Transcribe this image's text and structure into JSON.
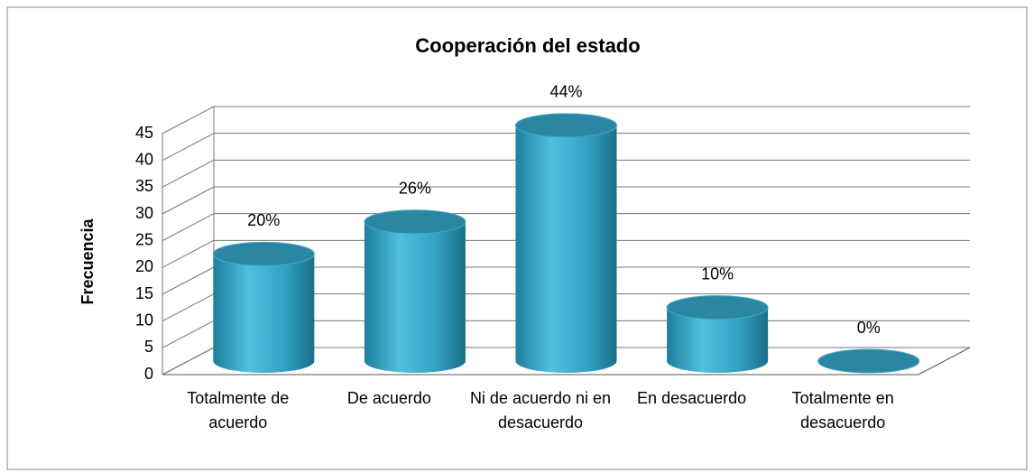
{
  "chart_data": {
    "type": "bar3d",
    "title": "Cooperación del estado",
    "y_label": "Frecuencia",
    "categories": [
      "Totalmente de acuerdo",
      "De acuerdo",
      "Ni de acuerdo ni en desacuerdo",
      "En desacuerdo",
      "Totalmente en desacuerdo"
    ],
    "values": [
      20,
      26,
      44,
      10,
      0
    ],
    "value_labels": [
      "20%",
      "26%",
      "44%",
      "10%",
      "0%"
    ],
    "color": "#33a3c4",
    "ylim": [
      0,
      45
    ],
    "yticks": [
      0,
      5,
      10,
      15,
      20,
      25,
      30,
      35,
      40,
      45
    ],
    "grid": true
  }
}
